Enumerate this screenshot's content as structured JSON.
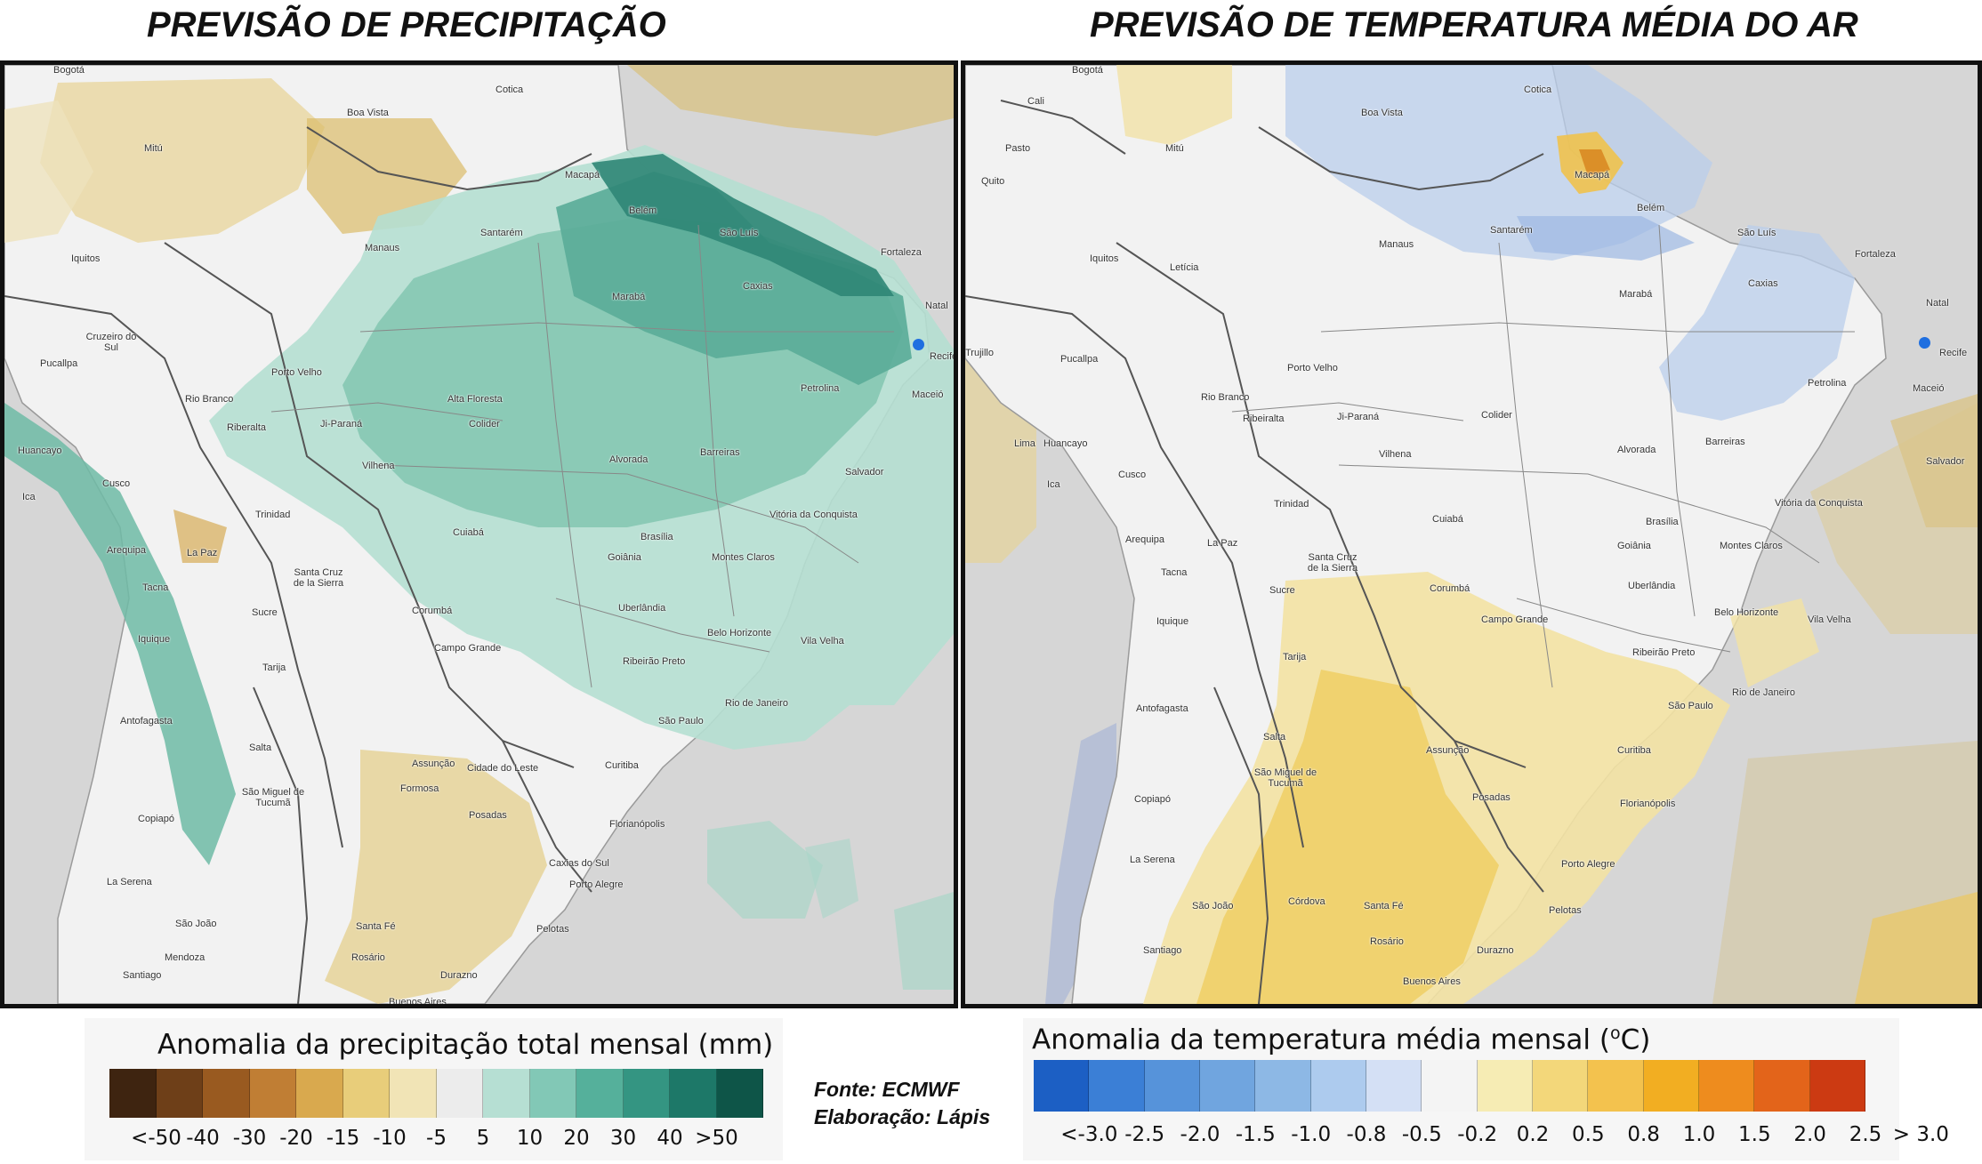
{
  "titles": {
    "left": "PREVISÃO DE PRECIPITAÇÃO",
    "right": "PREVISÃO DE TEMPERATURA MÉDIA DO AR"
  },
  "cities_left": [
    "Bogotá",
    "Cotica",
    "Boa Vista",
    "Mitú",
    "Macapá",
    "Belém",
    "Santarém",
    "São Luís",
    "Manaus",
    "Fortaleza",
    "Iquitos",
    "Caxias",
    "Marabá",
    "Natal",
    "Cruzeiro do Sul",
    "Recife",
    "Pucallpa",
    "Porto Velho",
    "Petrolina",
    "Maceió",
    "Rio Branco",
    "Alta Floresta",
    "Ji-Paraná",
    "Riberalta",
    "Colider",
    "Alvorada",
    "Barreiras",
    "Huancayo",
    "Vilhena",
    "Salvador",
    "Cusco",
    "Ica",
    "Trinidad",
    "Vitória da Conquista",
    "Cuiabá",
    "Brasília",
    "La Paz",
    "Arequipa",
    "Goiânia",
    "Montes Claros",
    "Santa Cruz de la Sierra",
    "Tacna",
    "Sucre",
    "Corumbá",
    "Uberlândia",
    "Iquique",
    "Belo Horizonte",
    "Campo Grande",
    "Vila Velha",
    "Tarija",
    "Ribeirão Preto",
    "Rio de Janeiro",
    "Antofagasta",
    "São Paulo",
    "Salta",
    "Assunção",
    "Cidade do Leste",
    "Curitiba",
    "Formosa",
    "São Miguel de Tucumã",
    "Posadas",
    "Florianópolis",
    "Copiapó",
    "Caxias do Sul",
    "Porto Alegre",
    "La Serena",
    "Santa Fé",
    "São João",
    "Pelotas",
    "Mendoza",
    "Rosário",
    "Durazno",
    "Santiago",
    "Buenos Aires"
  ],
  "cities_right": [
    "Bogotá",
    "Cotica",
    "Cali",
    "Boa Vista",
    "Pasto",
    "Mitú",
    "Macapá",
    "Quito",
    "Belém",
    "Santarém",
    "São Luís",
    "Manaus",
    "Iquitos",
    "Letícia",
    "Fortaleza",
    "Caxias",
    "Marabá",
    "Natal",
    "Trujillo",
    "Pucallpa",
    "Recife",
    "Porto Velho",
    "Maceió",
    "Petrolina",
    "Rio Branco",
    "Ribeiralta",
    "Ji-Paraná",
    "Colider",
    "Lima",
    "Huancayo",
    "Barreiras",
    "Alvorada",
    "Vilhena",
    "Salvador",
    "Cusco",
    "Ica",
    "Trinidad",
    "Vitória da Conquista",
    "Cuiabá",
    "Brasília",
    "Arequipa",
    "La Paz",
    "Goiânia",
    "Montes Claros",
    "Santa Cruz de la Sierra",
    "Tacna",
    "Sucre",
    "Corumbá",
    "Uberlândia",
    "Iquique",
    "Belo Horizonte",
    "Campo Grande",
    "Vila Velha",
    "Tarija",
    "Ribeirão Preto",
    "Rio de Janeiro",
    "Antofagasta",
    "São Paulo",
    "Salta",
    "Assunção",
    "Curitiba",
    "São Miguel de Tucumã",
    "Posadas",
    "Copiapó",
    "Florianópolis",
    "Porto Alegre",
    "La Serena",
    "Córdova",
    "São João",
    "Santa Fé",
    "Pelotas",
    "Santiago",
    "Rosário",
    "Durazno",
    "Buenos Aires"
  ],
  "legend_precip": {
    "title": "Anomalia da precipitação total mensal (mm)",
    "colors": [
      "#3e2410",
      "#6e3f18",
      "#995a20",
      "#c07e34",
      "#d9a94e",
      "#e8cd7a",
      "#f1e4b6",
      "#ececec",
      "#b6dfd3",
      "#82c8b6",
      "#55b09b",
      "#349582",
      "#1d7868",
      "#0e5548"
    ],
    "ticks": [
      "<-50",
      "-40",
      "-30",
      "-20",
      "-15",
      "-10",
      "-5",
      "5",
      "10",
      "20",
      "30",
      "40",
      ">50"
    ]
  },
  "legend_temp": {
    "title": "Anomalia da temperatura média mensal (",
    "degree": "o",
    "unit": "C)",
    "colors": [
      "#1c5fc4",
      "#3b7fd6",
      "#5693da",
      "#70a5df",
      "#8db8e5",
      "#adcbee",
      "#d4e0f5",
      "#f4f4f4",
      "#f6ecb4",
      "#f3d77a",
      "#f3c24e",
      "#f2ae22",
      "#ee8c1e",
      "#e3641a",
      "#cc3a12"
    ],
    "ticks": [
      "<-3.0",
      "-2.5",
      "-2.0",
      "-1.5",
      "-1.0",
      "-0.8",
      "-0.5",
      "-0.2",
      "0.2",
      "0.5",
      "0.8",
      "1.0",
      "1.5",
      "2.0",
      "2.5",
      "> 3.0"
    ]
  },
  "credits": {
    "source": "Fonte: ECMWF",
    "made_by": "Elaboração: Lápis"
  }
}
